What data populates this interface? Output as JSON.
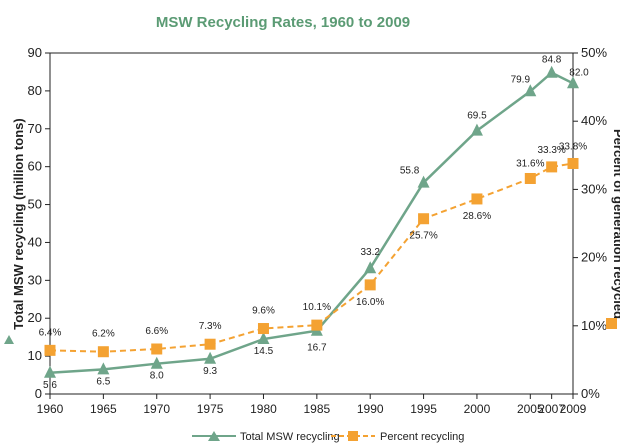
{
  "colors": {
    "total": "#6fa58a",
    "percent": "#f4a232",
    "title": "#5b9b74",
    "axis": "#222222"
  },
  "chart_data": {
    "type": "line",
    "title": "MSW Recycling Rates, 1960 to 2009",
    "ylabel_left": "Total MSW recycling (million tons)",
    "ylabel_right": "Percent of generation recycled",
    "x": [
      1960,
      1965,
      1970,
      1975,
      1980,
      1985,
      1990,
      1995,
      2000,
      2005,
      2007,
      2009
    ],
    "x_tick_labels": [
      "1960",
      "1965",
      "1970",
      "1975",
      "1980",
      "1985",
      "1990",
      "1995",
      "2000",
      "2005",
      "2007",
      "2009"
    ],
    "ylim_left": [
      0,
      90
    ],
    "yticks_left": [
      "0",
      "10",
      "20",
      "30",
      "40",
      "50",
      "60",
      "70",
      "80",
      "90"
    ],
    "ylim_right": [
      0,
      50
    ],
    "yticks_right": [
      "0%",
      "10%",
      "20%",
      "30%",
      "40%",
      "50%"
    ],
    "grid": false,
    "legend_position": "bottom",
    "series": [
      {
        "name": "Total MSW recycling",
        "axis": "left",
        "marker": "triangle",
        "values": [
          5.6,
          6.5,
          8.0,
          9.3,
          14.5,
          16.7,
          33.2,
          55.8,
          69.5,
          79.9,
          84.8,
          82.0
        ],
        "labels": [
          "5.6",
          "6.5",
          "8.0",
          "9.3",
          "14.5",
          "16.7",
          "33.2",
          "55.8",
          "69.5",
          "79.9",
          "84.8",
          "82.0"
        ]
      },
      {
        "name": "Percent recycling",
        "axis": "right",
        "marker": "square",
        "values": [
          6.4,
          6.2,
          6.6,
          7.3,
          9.6,
          10.1,
          16.0,
          25.7,
          28.6,
          31.6,
          33.3,
          33.8
        ],
        "labels": [
          "6.4%",
          "6.2%",
          "6.6%",
          "7.3%",
          "9.6%",
          "10.1%",
          "16.0%",
          "25.7%",
          "28.6%",
          "31.6%",
          "33.3%",
          "33.8%"
        ]
      }
    ]
  }
}
